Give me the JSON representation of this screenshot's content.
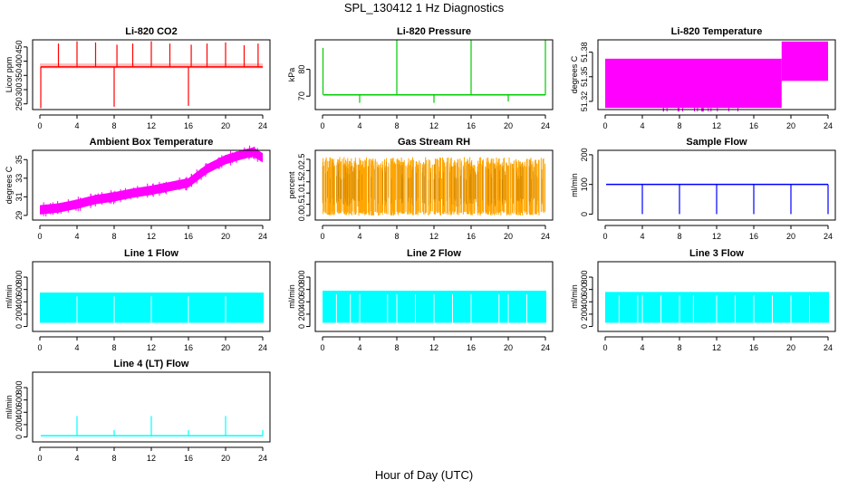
{
  "figure": {
    "title": "SPL_130412  1 Hz Diagnostics",
    "xlabel": "Hour of Day (UTC)"
  },
  "chart_data": [
    {
      "id": "co2",
      "type": "line",
      "title": "Li-820 CO2",
      "ylabel": "Licor ppm",
      "color": "#ff0000",
      "xlim": [
        0,
        24
      ],
      "xticks": [
        0,
        4,
        8,
        12,
        16,
        20,
        24
      ],
      "ylim": [
        230,
        475
      ],
      "yticks": [
        250,
        300,
        350,
        400,
        450
      ],
      "baseline": 380,
      "band": [
        375,
        392
      ],
      "spikes": [
        {
          "x": 0.1,
          "y": 235
        },
        {
          "x": 2.0,
          "y": 462
        },
        {
          "x": 4.0,
          "y": 470
        },
        {
          "x": 6.0,
          "y": 466
        },
        {
          "x": 8.0,
          "y": 240
        },
        {
          "x": 8.3,
          "y": 458
        },
        {
          "x": 10.0,
          "y": 462
        },
        {
          "x": 12.0,
          "y": 470
        },
        {
          "x": 14.0,
          "y": 462
        },
        {
          "x": 16.0,
          "y": 243
        },
        {
          "x": 16.3,
          "y": 458
        },
        {
          "x": 18.0,
          "y": 462
        },
        {
          "x": 20.0,
          "y": 466
        },
        {
          "x": 22.0,
          "y": 456
        },
        {
          "x": 23.5,
          "y": 462
        }
      ]
    },
    {
      "id": "pressure",
      "type": "line",
      "title": "Li-820 Pressure",
      "ylabel": "kPa",
      "color": "#00cc00",
      "xlim": [
        0,
        24
      ],
      "xticks": [
        0,
        4,
        8,
        12,
        16,
        20,
        24
      ],
      "ylim": [
        65,
        91
      ],
      "yticks": [
        70,
        80
      ],
      "baseline": 70.5,
      "spikes": [
        {
          "x": 0.05,
          "y": 88
        },
        {
          "x": 4.0,
          "y": 67.5
        },
        {
          "x": 8.0,
          "y": 91
        },
        {
          "x": 12.0,
          "y": 67.5
        },
        {
          "x": 16.0,
          "y": 91
        },
        {
          "x": 20.0,
          "y": 68
        },
        {
          "x": 24.0,
          "y": 91
        }
      ]
    },
    {
      "id": "licor_temp",
      "type": "band",
      "title": "Li-820 Temperature",
      "ylabel": "degrees C",
      "color": "#ff00ff",
      "xlim": [
        0,
        24
      ],
      "xticks": [
        0,
        4,
        8,
        12,
        16,
        20,
        24
      ],
      "ylim": [
        51.31,
        51.395
      ],
      "yticks": [
        51.32,
        51.35,
        51.38
      ],
      "segments": [
        {
          "x0": 0,
          "x1": 19,
          "low": 51.312,
          "high": 51.372
        },
        {
          "x0": 19,
          "x1": 24,
          "low": 51.345,
          "high": 51.393
        }
      ]
    },
    {
      "id": "box_temp",
      "type": "band",
      "title": "Ambient Box Temperature",
      "ylabel": "degrees C",
      "color": "#ff00ff",
      "xlim": [
        0,
        24
      ],
      "xticks": [
        0,
        4,
        8,
        12,
        16,
        20,
        24
      ],
      "ylim": [
        28.5,
        36
      ],
      "yticks": [
        29,
        31,
        33,
        35
      ],
      "trend": [
        [
          0,
          29.6
        ],
        [
          2,
          29.8
        ],
        [
          4,
          30.2
        ],
        [
          6,
          30.7
        ],
        [
          8,
          31.0
        ],
        [
          10,
          31.4
        ],
        [
          12,
          31.7
        ],
        [
          14,
          32.1
        ],
        [
          16,
          32.5
        ],
        [
          18,
          34.0
        ],
        [
          20,
          35.0
        ],
        [
          22,
          35.6
        ],
        [
          23,
          35.8
        ],
        [
          24,
          35.2
        ]
      ],
      "spread": 0.5
    },
    {
      "id": "rh",
      "type": "band",
      "title": "Gas Stream RH",
      "ylabel": "percent",
      "color": "#ffa500",
      "xlim": [
        0,
        24
      ],
      "xticks": [
        0,
        4,
        8,
        12,
        16,
        20,
        24
      ],
      "ylim": [
        -0.2,
        2.9
      ],
      "yticks": [
        0.0,
        0.5,
        1.0,
        1.5,
        2.0,
        2.5
      ],
      "low": 0.0,
      "high": 2.6
    },
    {
      "id": "sample_flow",
      "type": "line",
      "title": "Sample Flow",
      "ylabel": "ml/min",
      "color": "#0000ff",
      "xlim": [
        0,
        24
      ],
      "xticks": [
        0,
        4,
        8,
        12,
        16,
        20,
        24
      ],
      "ylim": [
        -20,
        215
      ],
      "yticks": [
        0,
        100,
        200
      ],
      "baseline": 100,
      "spikes": [
        {
          "x": 4.0,
          "y": 0
        },
        {
          "x": 8.0,
          "y": 0
        },
        {
          "x": 12.0,
          "y": 0
        },
        {
          "x": 16.0,
          "y": 0
        },
        {
          "x": 20.0,
          "y": 0
        },
        {
          "x": 24.0,
          "y": 0
        }
      ]
    },
    {
      "id": "line1",
      "type": "band",
      "title": "Line 1 Flow",
      "ylabel": "ml/min",
      "color": "#00ffff",
      "xlim": [
        0,
        24
      ],
      "xticks": [
        0,
        4,
        8,
        12,
        16,
        20,
        24
      ],
      "ylim": [
        -80,
        1050
      ],
      "yticks": [
        0,
        200,
        400,
        600,
        800
      ],
      "low": 60,
      "high": 550,
      "gaps": [
        4,
        8,
        12,
        16,
        20
      ]
    },
    {
      "id": "line2",
      "type": "band",
      "title": "Line 2 Flow",
      "ylabel": "ml/min",
      "color": "#00ffff",
      "xlim": [
        0,
        24
      ],
      "xticks": [
        0,
        4,
        8,
        12,
        16,
        20,
        24
      ],
      "ylim": [
        -80,
        1050
      ],
      "yticks": [
        0,
        200,
        400,
        600,
        800
      ],
      "low": 60,
      "high": 580,
      "gaps": [
        1.5,
        3,
        4,
        7,
        8,
        10,
        12,
        14,
        16,
        19,
        20,
        22
      ]
    },
    {
      "id": "line3",
      "type": "band",
      "title": "Line 3 Flow",
      "ylabel": "ml/min",
      "color": "#00ffff",
      "xlim": [
        0,
        24
      ],
      "xticks": [
        0,
        4,
        8,
        12,
        16,
        20,
        24
      ],
      "ylim": [
        -80,
        1050
      ],
      "yticks": [
        0,
        200,
        400,
        600,
        800
      ],
      "low": 60,
      "high": 560,
      "gaps": [
        1.5,
        3.5,
        4,
        6,
        8,
        9.5,
        12,
        14,
        16,
        18,
        20,
        22
      ]
    },
    {
      "id": "line4",
      "type": "line",
      "title": "Line 4 (LT) Flow",
      "ylabel": "ml/min",
      "color": "#00ffff",
      "xlim": [
        0,
        24
      ],
      "xticks": [
        0,
        4,
        8,
        12,
        16,
        20,
        24
      ],
      "ylim": [
        -80,
        1050
      ],
      "yticks": [
        0,
        200,
        400,
        600,
        800
      ],
      "baseline": 20,
      "spikes": [
        {
          "x": 4.0,
          "y": 340
        },
        {
          "x": 8.0,
          "y": 110
        },
        {
          "x": 12.0,
          "y": 340
        },
        {
          "x": 16.0,
          "y": 110
        },
        {
          "x": 20.0,
          "y": 340
        },
        {
          "x": 24.0,
          "y": 110
        }
      ]
    }
  ]
}
